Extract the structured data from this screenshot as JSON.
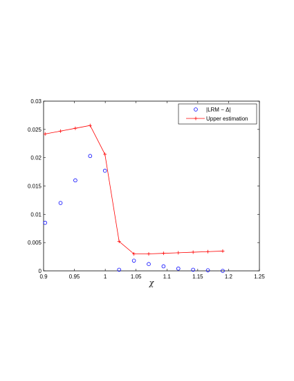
{
  "chart_data": {
    "type": "scatter",
    "title": "",
    "xlabel": "χ",
    "ylabel": "",
    "xlim": [
      0.9,
      1.25
    ],
    "ylim": [
      0,
      0.03
    ],
    "x_ticks": [
      "0.9",
      "0.95",
      "1",
      "1.05",
      "1.1",
      "1.15",
      "1.2",
      "1.25"
    ],
    "y_ticks": [
      "0",
      "0.005",
      "0.01",
      "0.015",
      "0.02",
      "0.025",
      "0.03"
    ],
    "grid": false,
    "legend_position": "top-right",
    "series": [
      {
        "name": "|LRM − Δ|",
        "type": "scatter",
        "marker": "circle",
        "color": "#0000ff",
        "x": [
          0.9025,
          0.9275,
          0.9515,
          0.9755,
          0.9995,
          1.0225,
          1.0465,
          1.0705,
          1.0945,
          1.1185,
          1.1425,
          1.1665,
          1.1905
        ],
        "y": [
          0.0085,
          0.012,
          0.016,
          0.0203,
          0.0177,
          0.0002,
          0.0018,
          0.0012,
          0.0008,
          0.0004,
          0.0002,
          0.0001,
          0.0
        ]
      },
      {
        "name": "Upper estimation",
        "type": "line",
        "marker": "plus",
        "color": "#ff0000",
        "x": [
          0.9025,
          0.9275,
          0.9515,
          0.9755,
          0.9995,
          1.0225,
          1.0465,
          1.0705,
          1.0945,
          1.1185,
          1.1425,
          1.1665,
          1.1905
        ],
        "y": [
          0.0242,
          0.0247,
          0.0252,
          0.0257,
          0.0206,
          0.0052,
          0.003,
          0.003,
          0.0031,
          0.0032,
          0.0033,
          0.0034,
          0.0035
        ]
      }
    ]
  }
}
